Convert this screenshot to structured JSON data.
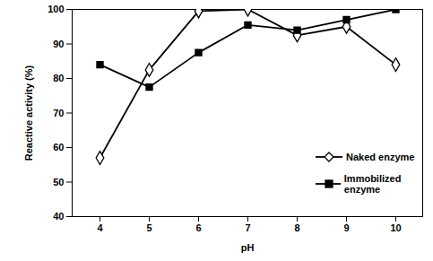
{
  "chart_data": {
    "type": "line",
    "categories": [
      4,
      5,
      6,
      7,
      8,
      9,
      10
    ],
    "series": [
      {
        "name": "Naked enzyme",
        "color": "#000000",
        "marker": "open diamond",
        "values": [
          57,
          82.5,
          99.5,
          100,
          92.5,
          95,
          84
        ]
      },
      {
        "name": "Immobilized enzyme",
        "color": "#000000",
        "marker": "filled square",
        "values": [
          84,
          77.5,
          87.5,
          95.5,
          94,
          97,
          100
        ]
      }
    ],
    "x_label": "pH",
    "y_label": "Reactive activity (%)",
    "ylim": [
      40,
      100
    ],
    "yticks": [
      40,
      50,
      60,
      70,
      80,
      90,
      100
    ],
    "grid": false,
    "legend": "right"
  }
}
